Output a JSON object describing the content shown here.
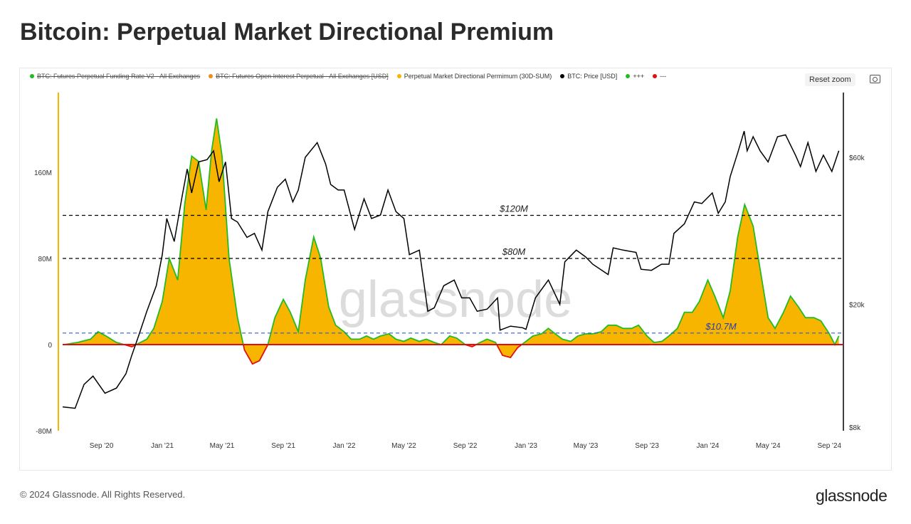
{
  "title": "Bitcoin: Perpetual Market Directional Premium",
  "footer": "© 2024 Glassnode. All Rights Reserved.",
  "logo": "glassnode",
  "watermark": "glassnode",
  "toolbar": {
    "reset_zoom": "Reset zoom",
    "camera_icon": "camera-icon"
  },
  "chart_data": {
    "type": "area",
    "title": "Bitcoin: Perpetual Market Directional Premium",
    "legend_position": "top-left",
    "legend": [
      {
        "label": "BTC: Futures Perpetual Funding Rate V2 - All Exchanges",
        "color": "#22bb22",
        "hidden": true
      },
      {
        "label": "BTC: Futures Open Interest Perpetual - All Exchanges [USD]",
        "color": "#f08c1a",
        "hidden": true
      },
      {
        "label": "Perpetual Market Directional Permimum (30D-SUM)",
        "color": "#f7b500",
        "hidden": false
      },
      {
        "label": "BTC: Price [USD]",
        "color": "#000000",
        "hidden": false
      },
      {
        "label": "+++",
        "color": "#22bb22",
        "hidden": false
      },
      {
        "label": "---",
        "color": "#e01010",
        "hidden": false
      }
    ],
    "x_ticks": [
      "Sep '20",
      "Jan '21",
      "May '21",
      "Sep '21",
      "Jan '22",
      "May '22",
      "Sep '22",
      "Jan '23",
      "May '23",
      "Sep '23",
      "Jan '24",
      "May '24",
      "Sep '24"
    ],
    "x_tick_dates": [
      "2020-09-01",
      "2021-01-01",
      "2021-05-01",
      "2021-09-01",
      "2022-01-01",
      "2022-05-01",
      "2022-09-01",
      "2023-01-01",
      "2023-05-01",
      "2023-09-01",
      "2024-01-01",
      "2024-05-01",
      "2024-09-01"
    ],
    "x_range": [
      "2020-06-15",
      "2024-09-22"
    ],
    "y_left": {
      "ticks": [
        "-80M",
        "0",
        "80M",
        "160M"
      ],
      "tick_values": [
        -80,
        0,
        80,
        160
      ],
      "range": [
        -80,
        240
      ],
      "unit": "M USD"
    },
    "y_right": {
      "scale": "log",
      "ticks": [
        "$8k",
        "$20k",
        "$60k"
      ],
      "tick_values": [
        8,
        20,
        60
      ],
      "unit": "k USD"
    },
    "grid": false,
    "reference_lines": [
      {
        "label": "$120M",
        "value": 120,
        "color": "#000000",
        "style": "dashed"
      },
      {
        "label": "$80M",
        "value": 80,
        "color": "#000000",
        "style": "dashed"
      },
      {
        "label": "$10.7M",
        "value": 10.7,
        "color": "#2a5bd7",
        "style": "dashed"
      },
      {
        "label": "",
        "value": 0,
        "color": "#e01010",
        "style": "solid"
      }
    ],
    "premium_series": {
      "name": "Perpetual Market Directional Permimum (30D-SUM)",
      "points": [
        [
          "2020-06-18",
          0
        ],
        [
          "2020-07-15",
          2
        ],
        [
          "2020-08-10",
          5
        ],
        [
          "2020-08-25",
          12
        ],
        [
          "2020-09-10",
          8
        ],
        [
          "2020-10-01",
          2
        ],
        [
          "2020-11-01",
          -2
        ],
        [
          "2020-12-01",
          5
        ],
        [
          "2020-12-15",
          15
        ],
        [
          "2021-01-01",
          40
        ],
        [
          "2021-01-15",
          80
        ],
        [
          "2021-02-01",
          60
        ],
        [
          "2021-02-15",
          130
        ],
        [
          "2021-03-01",
          175
        ],
        [
          "2021-03-15",
          170
        ],
        [
          "2021-03-30",
          125
        ],
        [
          "2021-04-10",
          180
        ],
        [
          "2021-04-20",
          210
        ],
        [
          "2021-05-01",
          175
        ],
        [
          "2021-05-15",
          80
        ],
        [
          "2021-06-01",
          25
        ],
        [
          "2021-06-15",
          -5
        ],
        [
          "2021-07-01",
          -18
        ],
        [
          "2021-07-15",
          -15
        ],
        [
          "2021-08-01",
          0
        ],
        [
          "2021-08-15",
          25
        ],
        [
          "2021-09-01",
          42
        ],
        [
          "2021-09-15",
          30
        ],
        [
          "2021-10-01",
          12
        ],
        [
          "2021-10-15",
          60
        ],
        [
          "2021-11-01",
          100
        ],
        [
          "2021-11-15",
          80
        ],
        [
          "2021-12-01",
          35
        ],
        [
          "2021-12-15",
          18
        ],
        [
          "2022-01-01",
          12
        ],
        [
          "2022-01-15",
          5
        ],
        [
          "2022-02-01",
          5
        ],
        [
          "2022-02-15",
          8
        ],
        [
          "2022-03-01",
          5
        ],
        [
          "2022-03-15",
          8
        ],
        [
          "2022-04-01",
          10
        ],
        [
          "2022-04-15",
          5
        ],
        [
          "2022-05-01",
          3
        ],
        [
          "2022-05-15",
          6
        ],
        [
          "2022-06-01",
          3
        ],
        [
          "2022-06-15",
          5
        ],
        [
          "2022-07-01",
          2
        ],
        [
          "2022-07-15",
          0
        ],
        [
          "2022-08-01",
          8
        ],
        [
          "2022-08-15",
          6
        ],
        [
          "2022-09-01",
          0
        ],
        [
          "2022-09-15",
          -2
        ],
        [
          "2022-10-01",
          2
        ],
        [
          "2022-10-15",
          5
        ],
        [
          "2022-11-01",
          2
        ],
        [
          "2022-11-15",
          -10
        ],
        [
          "2022-12-01",
          -12
        ],
        [
          "2022-12-15",
          -3
        ],
        [
          "2023-01-01",
          3
        ],
        [
          "2023-01-15",
          8
        ],
        [
          "2023-02-01",
          10
        ],
        [
          "2023-02-15",
          15
        ],
        [
          "2023-03-01",
          10
        ],
        [
          "2023-03-15",
          5
        ],
        [
          "2023-04-01",
          3
        ],
        [
          "2023-04-15",
          8
        ],
        [
          "2023-05-01",
          10
        ],
        [
          "2023-05-15",
          10
        ],
        [
          "2023-06-01",
          12
        ],
        [
          "2023-06-15",
          18
        ],
        [
          "2023-07-01",
          18
        ],
        [
          "2023-07-15",
          15
        ],
        [
          "2023-08-01",
          15
        ],
        [
          "2023-08-15",
          18
        ],
        [
          "2023-09-01",
          8
        ],
        [
          "2023-09-15",
          2
        ],
        [
          "2023-10-01",
          3
        ],
        [
          "2023-10-15",
          8
        ],
        [
          "2023-11-01",
          15
        ],
        [
          "2023-11-15",
          30
        ],
        [
          "2023-12-01",
          30
        ],
        [
          "2023-12-15",
          40
        ],
        [
          "2024-01-01",
          60
        ],
        [
          "2024-01-15",
          45
        ],
        [
          "2024-02-01",
          25
        ],
        [
          "2024-02-15",
          50
        ],
        [
          "2024-03-01",
          100
        ],
        [
          "2024-03-15",
          130
        ],
        [
          "2024-04-01",
          110
        ],
        [
          "2024-04-15",
          70
        ],
        [
          "2024-05-01",
          25
        ],
        [
          "2024-05-15",
          15
        ],
        [
          "2024-06-01",
          30
        ],
        [
          "2024-06-15",
          45
        ],
        [
          "2024-07-01",
          35
        ],
        [
          "2024-07-15",
          25
        ],
        [
          "2024-08-01",
          25
        ],
        [
          "2024-08-15",
          22
        ],
        [
          "2024-09-01",
          10
        ],
        [
          "2024-09-12",
          0
        ],
        [
          "2024-09-20",
          8
        ]
      ]
    },
    "price_series": {
      "name": "BTC: Price [USD]",
      "unit": "k USD",
      "points": [
        [
          "2020-06-15",
          9.3
        ],
        [
          "2020-07-10",
          9.2
        ],
        [
          "2020-07-28",
          11
        ],
        [
          "2020-08-15",
          11.7
        ],
        [
          "2020-09-08",
          10.3
        ],
        [
          "2020-10-01",
          10.7
        ],
        [
          "2020-10-20",
          11.9
        ],
        [
          "2020-11-01",
          13.7
        ],
        [
          "2020-11-15",
          15.9
        ],
        [
          "2020-12-01",
          19
        ],
        [
          "2020-12-20",
          23
        ],
        [
          "2021-01-01",
          29
        ],
        [
          "2021-01-10",
          38
        ],
        [
          "2021-01-25",
          32
        ],
        [
          "2021-02-10",
          45
        ],
        [
          "2021-02-20",
          55
        ],
        [
          "2021-03-01",
          46
        ],
        [
          "2021-03-15",
          58
        ],
        [
          "2021-04-01",
          59
        ],
        [
          "2021-04-14",
          63
        ],
        [
          "2021-04-25",
          50
        ],
        [
          "2021-05-08",
          58
        ],
        [
          "2021-05-20",
          38
        ],
        [
          "2021-06-01",
          37
        ],
        [
          "2021-06-20",
          33
        ],
        [
          "2021-07-05",
          34
        ],
        [
          "2021-07-20",
          30
        ],
        [
          "2021-08-01",
          40
        ],
        [
          "2021-08-20",
          48
        ],
        [
          "2021-09-05",
          51
        ],
        [
          "2021-09-20",
          43
        ],
        [
          "2021-10-01",
          47
        ],
        [
          "2021-10-15",
          60
        ],
        [
          "2021-11-08",
          67
        ],
        [
          "2021-11-25",
          57
        ],
        [
          "2021-12-05",
          49
        ],
        [
          "2021-12-20",
          47
        ],
        [
          "2022-01-01",
          47
        ],
        [
          "2022-01-22",
          35
        ],
        [
          "2022-02-10",
          44
        ],
        [
          "2022-02-25",
          38
        ],
        [
          "2022-03-15",
          39
        ],
        [
          "2022-03-30",
          47
        ],
        [
          "2022-04-15",
          40
        ],
        [
          "2022-05-01",
          38
        ],
        [
          "2022-05-12",
          29
        ],
        [
          "2022-06-01",
          30
        ],
        [
          "2022-06-18",
          19
        ],
        [
          "2022-07-01",
          19.5
        ],
        [
          "2022-07-20",
          23
        ],
        [
          "2022-08-10",
          24
        ],
        [
          "2022-08-25",
          21
        ],
        [
          "2022-09-10",
          21
        ],
        [
          "2022-09-25",
          19
        ],
        [
          "2022-10-15",
          19.3
        ],
        [
          "2022-11-05",
          21
        ],
        [
          "2022-11-10",
          16.5
        ],
        [
          "2022-12-01",
          17
        ],
        [
          "2022-12-25",
          16.8
        ],
        [
          "2023-01-01",
          16.6
        ],
        [
          "2023-01-20",
          21
        ],
        [
          "2023-02-15",
          24
        ],
        [
          "2023-03-10",
          20
        ],
        [
          "2023-03-20",
          27.5
        ],
        [
          "2023-04-12",
          30
        ],
        [
          "2023-05-01",
          28.5
        ],
        [
          "2023-05-15",
          27
        ],
        [
          "2023-06-15",
          25
        ],
        [
          "2023-06-25",
          30.5
        ],
        [
          "2023-07-15",
          30
        ],
        [
          "2023-08-10",
          29.5
        ],
        [
          "2023-08-20",
          26
        ],
        [
          "2023-09-10",
          25.8
        ],
        [
          "2023-09-30",
          27
        ],
        [
          "2023-10-15",
          27
        ],
        [
          "2023-10-25",
          34
        ],
        [
          "2023-11-15",
          36.5
        ],
        [
          "2023-12-05",
          43
        ],
        [
          "2023-12-20",
          42.5
        ],
        [
          "2024-01-10",
          46
        ],
        [
          "2024-01-22",
          39.5
        ],
        [
          "2024-02-05",
          43
        ],
        [
          "2024-02-15",
          52
        ],
        [
          "2024-03-01",
          62
        ],
        [
          "2024-03-14",
          73
        ],
        [
          "2024-03-20",
          63
        ],
        [
          "2024-04-01",
          70
        ],
        [
          "2024-04-15",
          63
        ],
        [
          "2024-05-01",
          58
        ],
        [
          "2024-05-20",
          70
        ],
        [
          "2024-06-05",
          71
        ],
        [
          "2024-06-25",
          61
        ],
        [
          "2024-07-05",
          56
        ],
        [
          "2024-07-20",
          67
        ],
        [
          "2024-08-05",
          54
        ],
        [
          "2024-08-20",
          61
        ],
        [
          "2024-09-06",
          54
        ],
        [
          "2024-09-20",
          63
        ]
      ]
    }
  }
}
